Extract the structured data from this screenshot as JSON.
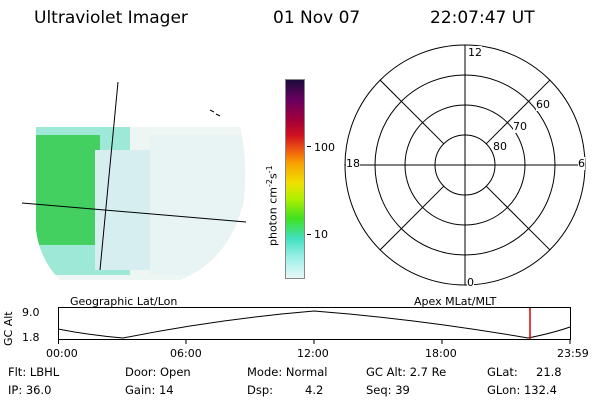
{
  "header": {
    "instrument": "Ultraviolet Imager",
    "date": "01 Nov 07",
    "time": "22:07:47 UT"
  },
  "colorbar": {
    "label_parts": [
      "photon cm",
      "-2",
      "s",
      "-1"
    ],
    "ticks": [
      "100",
      "10"
    ],
    "colors": [
      "#1a0a3a",
      "#6a0060",
      "#a0003c",
      "#d01020",
      "#f06010",
      "#f8a000",
      "#f0e000",
      "#b0f000",
      "#40e020",
      "#40e0c0",
      "#a0f0e8",
      "#e8f8f8"
    ]
  },
  "polar": {
    "mlt_labels": [
      "12",
      "18",
      "6",
      "0"
    ],
    "lat_labels": [
      "60",
      "70",
      "80"
    ]
  },
  "projection_labels": {
    "left": "Geographic Lat/Lon",
    "right": "Apex MLat/MLT"
  },
  "altitude_plot": {
    "axis_label": "GC Alt",
    "y_ticks": [
      "9.0",
      "1.8"
    ],
    "x_ticks": [
      "00:00",
      "06:00",
      "12:00",
      "18:00",
      "23:59"
    ]
  },
  "info": {
    "flt": "Flt: LBHL",
    "ip": "IP: 36.0",
    "door": "Door: Open",
    "gain": "Gain: 14",
    "mode": "Mode: Normal",
    "dsp_label": "Dsp:",
    "dsp_value": "4.2",
    "gc_alt": "GC Alt: 2.7 Re",
    "seq": "Seq: 39",
    "glat_label": "GLat:",
    "glat_value": "21.8",
    "glon": "GLon: 132.4"
  }
}
